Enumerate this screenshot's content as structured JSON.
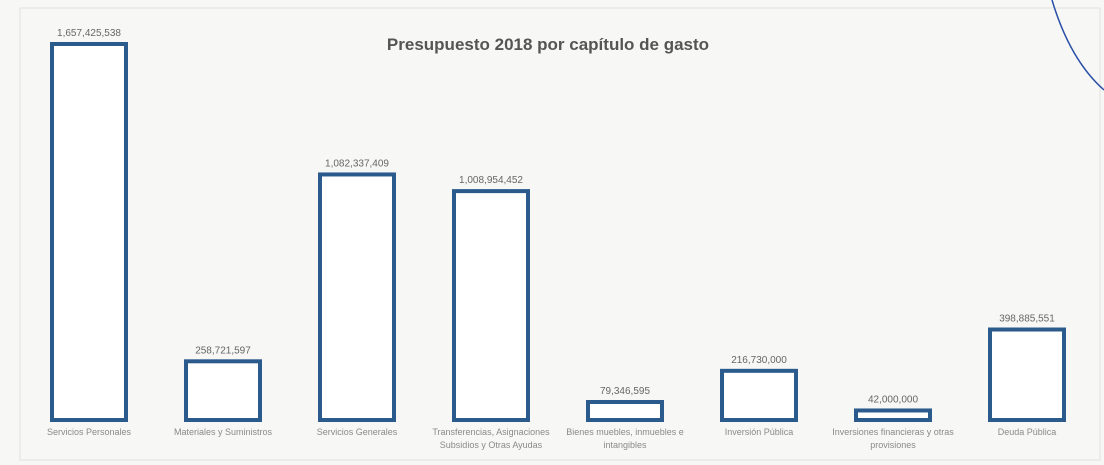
{
  "chart_data": {
    "type": "bar",
    "title": "Presupuesto 2018 por capítulo de gasto",
    "categories": [
      "Servicios Personales",
      "Materiales y Suministros",
      "Servicios Generales",
      "Transferencias, Asignaciones Subsidios y Otras Ayudas",
      "Bienes muebles, inmuebles e intangibles",
      "Inversión Pública",
      "Inversiones financieras y otras provisiones",
      "Deuda Pública"
    ],
    "values": [
      1657425538,
      258721597,
      1082337409,
      1008954452,
      79346595,
      216730000,
      42000000,
      398885551
    ],
    "value_labels": [
      "1,657,425,538",
      "258,721,597",
      "1,082,337,409",
      "1,008,954,452",
      "79,346,595",
      "216,730,000",
      "42,000,000",
      "398,885,551"
    ],
    "color": "#2b5b8c"
  }
}
